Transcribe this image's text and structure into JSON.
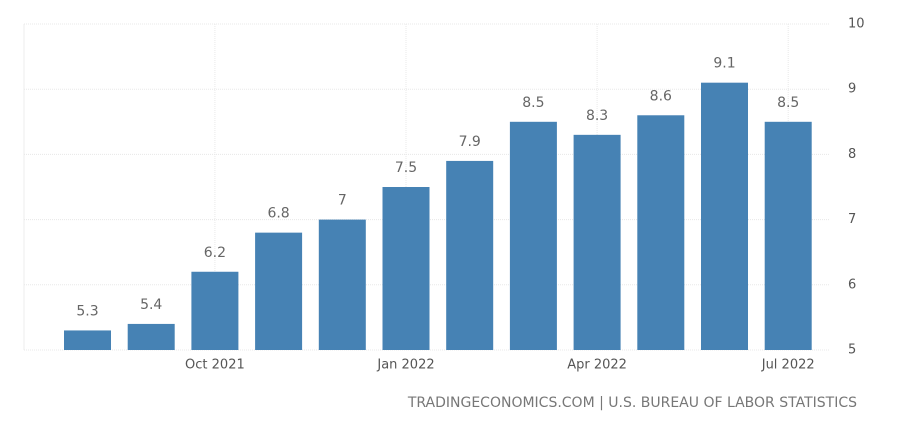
{
  "chart_data": {
    "type": "bar",
    "categories": [
      null,
      null,
      "Oct 2021",
      null,
      null,
      "Jan 2022",
      null,
      null,
      "Apr 2022",
      null,
      null,
      "Jul 2022"
    ],
    "values": [
      5.3,
      5.4,
      6.2,
      6.8,
      7,
      7.5,
      7.9,
      8.5,
      8.3,
      8.6,
      9.1,
      8.5
    ],
    "color": "#4682b4",
    "ylim": [
      5,
      10
    ],
    "yticks": [
      5,
      6,
      7,
      8,
      9,
      10
    ],
    "grid": true,
    "source": "TRADINGECONOMICS.COM | U.S. BUREAU OF LABOR STATISTICS"
  }
}
